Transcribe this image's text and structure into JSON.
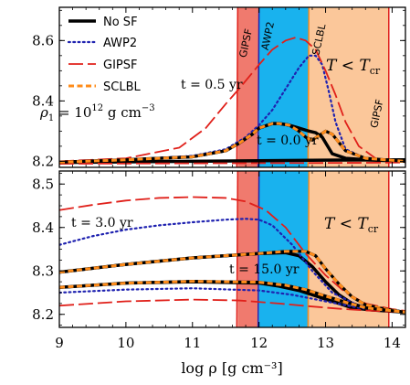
{
  "chart_data": {
    "type": "line",
    "xlabel": "log ρ  [g cm⁻³]",
    "xlim": [
      9,
      14.2
    ],
    "xticks": [
      "9",
      "10",
      "11",
      "12",
      "13",
      "14"
    ],
    "colors": {
      "no_sf": "#000000",
      "awp2": "#1f22b0",
      "gipsf": "#e0201a",
      "sclbl": "#ff8c1a",
      "band_gipsf": "#f07a6e",
      "band_awp2": "#19b2ee",
      "band_tcr": "#fbc79a"
    },
    "legend": [
      "No SF",
      "AWP2",
      "GIPSF",
      "SCLBL"
    ],
    "regions": {
      "gipsf_band": [
        11.68,
        12.0
      ],
      "awp2_band": [
        12.0,
        12.75
      ],
      "tcr_region": [
        12.75,
        13.95
      ],
      "top_labels": [
        "GIPSF",
        "AWP2",
        "SCLBL",
        "GIPSF"
      ],
      "tcr_label_base": "T < T",
      "tcr_label_sub": "cr"
    },
    "panels": [
      {
        "ylim": [
          8.18,
          8.71
        ],
        "yticks": [
          "8.2",
          "8.4",
          "8.6"
        ],
        "density_label_prefix": "ρ",
        "density_label_sub": "1",
        "density_label_eq": " = 10",
        "density_label_exp": "12",
        "density_label_unit": " g cm",
        "density_label_unitexp": "−3",
        "annotations": [
          "t = 0.5 yr",
          "t = 0.0 yr"
        ],
        "series": [
          {
            "name": "No SF",
            "style": "solid",
            "x": [
              9.0,
              10.0,
              11.0,
              11.5,
              11.7,
              11.9,
              12.0,
              12.2,
              12.3,
              12.45,
              12.6,
              12.75,
              12.85,
              12.95,
              13.1,
              13.3,
              13.6,
              14.2
            ],
            "y": [
              8.197,
              8.205,
              8.215,
              8.235,
              8.26,
              8.29,
              8.31,
              8.325,
              8.325,
              8.32,
              8.31,
              8.3,
              8.295,
              8.28,
              8.225,
              8.21,
              8.205,
              8.2
            ]
          },
          {
            "name": "No SF",
            "style": "solid",
            "x": [
              9.0,
              10.0,
              11.0,
              12.0,
              13.0,
              14.2
            ],
            "y": [
              8.196,
              8.198,
              8.2,
              8.202,
              8.204,
              8.205
            ]
          },
          {
            "name": "AWP2",
            "style": "dotted",
            "x": [
              9.0,
              10.0,
              11.0,
              11.5,
              11.8,
              12.0,
              12.2,
              12.4,
              12.6,
              12.75,
              12.85,
              12.95,
              13.05,
              13.15,
              13.3,
              13.6,
              14.0,
              14.2
            ],
            "y": [
              8.197,
              8.205,
              8.218,
              8.24,
              8.28,
              8.32,
              8.37,
              8.44,
              8.51,
              8.55,
              8.55,
              8.52,
              8.43,
              8.33,
              8.24,
              8.21,
              8.205,
              8.2
            ]
          },
          {
            "name": "GIPSF",
            "style": "longdash",
            "x": [
              9.0,
              10.0,
              10.8,
              11.2,
              11.5,
              11.7,
              12.0,
              12.2,
              12.4,
              12.55,
              12.7,
              12.85,
              13.0,
              13.15,
              13.3,
              13.5,
              13.75,
              14.2
            ],
            "y": [
              8.2,
              8.21,
              8.245,
              8.31,
              8.39,
              8.44,
              8.52,
              8.57,
              8.6,
              8.61,
              8.6,
              8.57,
              8.5,
              8.42,
              8.33,
              8.25,
              8.21,
              8.2
            ]
          },
          {
            "name": "GIPSF",
            "style": "longdash",
            "x": [
              9.0,
              10.5,
              12.0,
              13.5,
              14.2
            ],
            "y": [
              8.192,
              8.193,
              8.194,
              8.195,
              8.196
            ]
          },
          {
            "name": "SCLBL",
            "style": "dashed",
            "x": [
              9.0,
              10.0,
              11.0,
              11.5,
              11.7,
              11.9,
              12.0,
              12.2,
              12.3,
              12.45,
              12.6,
              12.7,
              12.8,
              12.9,
              13.0,
              13.1,
              13.3,
              13.6,
              14.2
            ],
            "y": [
              8.197,
              8.205,
              8.215,
              8.235,
              8.26,
              8.29,
              8.31,
              8.325,
              8.325,
              8.32,
              8.3,
              8.28,
              8.27,
              8.285,
              8.3,
              8.29,
              8.235,
              8.21,
              8.2
            ]
          }
        ]
      },
      {
        "ylim": [
          8.17,
          8.53
        ],
        "yticks": [
          "8.2",
          "8.3",
          "8.4",
          "8.5"
        ],
        "annotations": [
          "t = 3.0 yr",
          "t = 15.0 yr"
        ],
        "series": [
          {
            "name": "No SF",
            "style": "solid",
            "x": [
              9.0,
              10.0,
              11.0,
              12.0,
              12.4,
              12.6,
              12.8,
              13.0,
              13.2,
              13.4,
              13.6,
              13.9,
              14.2
            ],
            "y": [
              8.297,
              8.315,
              8.33,
              8.34,
              8.342,
              8.335,
              8.31,
              8.275,
              8.245,
              8.225,
              8.215,
              8.21,
              8.205
            ]
          },
          {
            "name": "No SF",
            "style": "solid",
            "x": [
              9.0,
              10.0,
              11.0,
              12.0,
              12.3,
              12.6,
              12.8,
              13.0,
              13.2,
              13.4,
              13.7,
              14.2
            ],
            "y": [
              8.262,
              8.272,
              8.275,
              8.272,
              8.265,
              8.255,
              8.245,
              8.235,
              8.225,
              8.215,
              8.21,
              8.205
            ]
          },
          {
            "name": "AWP2",
            "style": "dotted",
            "x": [
              9.0,
              9.5,
              10.0,
              10.5,
              11.0,
              11.5,
              11.8,
              12.0,
              12.2,
              12.5,
              12.8,
              13.1,
              13.5,
              14.0,
              14.2
            ],
            "y": [
              8.36,
              8.38,
              8.395,
              8.405,
              8.412,
              8.418,
              8.42,
              8.418,
              8.405,
              8.36,
              8.3,
              8.25,
              8.22,
              8.207,
              8.205
            ]
          },
          {
            "name": "AWP2",
            "style": "dotted",
            "x": [
              9.0,
              10.0,
              11.0,
              12.0,
              12.5,
              13.0,
              13.5,
              14.0,
              14.2
            ],
            "y": [
              8.25,
              8.257,
              8.26,
              8.255,
              8.245,
              8.23,
              8.215,
              8.207,
              8.205
            ]
          },
          {
            "name": "GIPSF",
            "style": "longdash",
            "x": [
              9.0,
              9.5,
              10.0,
              10.5,
              11.0,
              11.5,
              11.8,
              12.1,
              12.4,
              12.7,
              13.0,
              13.3,
              13.6,
              14.0,
              14.2
            ],
            "y": [
              8.44,
              8.452,
              8.462,
              8.468,
              8.47,
              8.468,
              8.46,
              8.44,
              8.4,
              8.34,
              8.29,
              8.25,
              8.225,
              8.212,
              8.208
            ]
          },
          {
            "name": "GIPSF",
            "style": "longdash",
            "x": [
              9.0,
              10.0,
              11.0,
              11.7,
              12.3,
              12.8,
              13.2,
              13.6,
              14.0,
              14.2
            ],
            "y": [
              8.22,
              8.23,
              8.234,
              8.232,
              8.225,
              8.218,
              8.213,
              8.209,
              8.206,
              8.205
            ]
          },
          {
            "name": "SCLBL",
            "style": "dashed",
            "x": [
              9.0,
              10.0,
              11.0,
              12.0,
              12.4,
              12.7,
              12.85,
              13.0,
              13.2,
              13.4,
              13.6,
              13.9,
              14.2
            ],
            "y": [
              8.297,
              8.315,
              8.33,
              8.34,
              8.345,
              8.345,
              8.335,
              8.305,
              8.27,
              8.24,
              8.222,
              8.212,
              8.205
            ]
          },
          {
            "name": "SCLBL",
            "style": "dashed",
            "x": [
              9.0,
              10.0,
              11.0,
              12.0,
              12.4,
              12.7,
              13.0,
              13.3,
              13.6,
              14.2
            ],
            "y": [
              8.262,
              8.272,
              8.276,
              8.274,
              8.267,
              8.257,
              8.242,
              8.228,
              8.215,
              8.205
            ]
          }
        ]
      }
    ]
  }
}
